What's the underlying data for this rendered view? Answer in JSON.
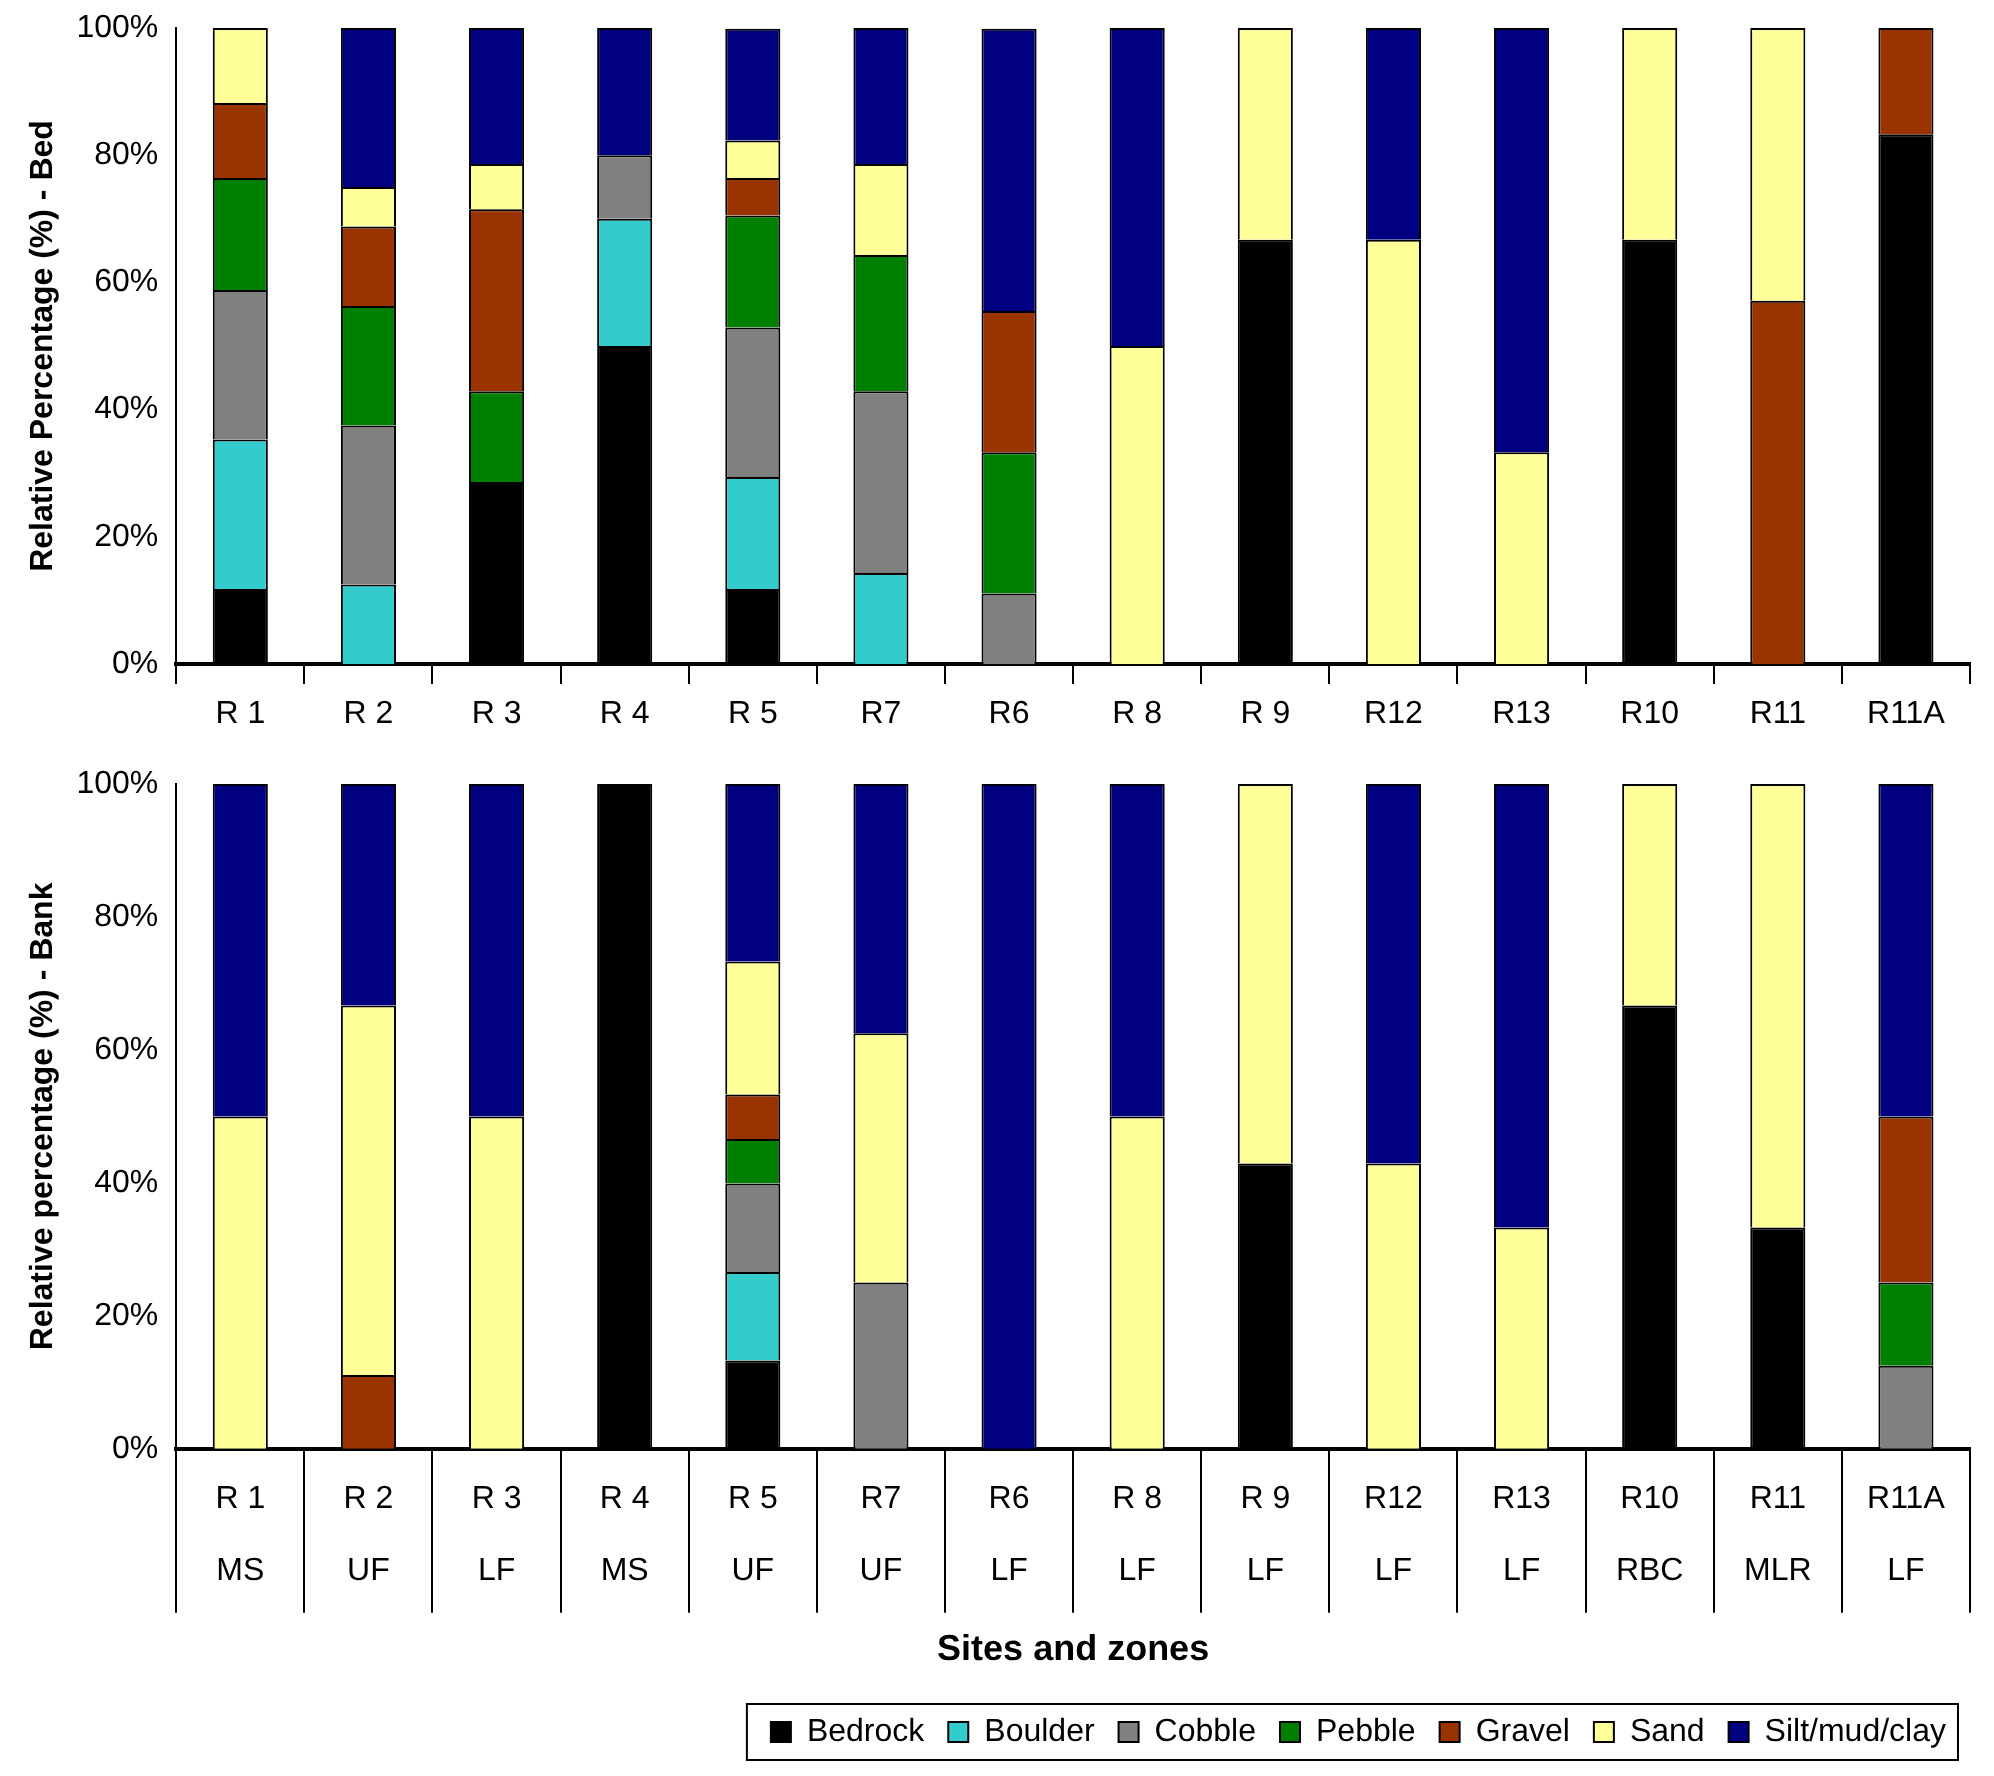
{
  "chart_data": [
    {
      "type": "bar",
      "stacked": true,
      "ylabel": "Relative Percentage (%) - Bed",
      "legend": false,
      "categories": [
        "R 1",
        "R 2",
        "R 3",
        "R 4",
        "R 5",
        "R7",
        "R6",
        "R 8",
        "R 9",
        "R12",
        "R13",
        "R10",
        "R11",
        "R11A"
      ],
      "ylim": [
        0,
        100
      ],
      "yticks": [
        {
          "value": 0,
          "label": "0%"
        },
        {
          "value": 20,
          "label": "20%"
        },
        {
          "value": 40,
          "label": "40%"
        },
        {
          "value": 60,
          "label": "60%"
        },
        {
          "value": 80,
          "label": "80%"
        },
        {
          "value": 100,
          "label": "100%"
        }
      ],
      "series": [
        {
          "color": "#000000",
          "values": [
            11.8,
            null,
            28.6,
            50,
            11.8,
            null,
            null,
            null,
            66.7,
            null,
            null,
            66.7,
            null,
            83.3
          ]
        },
        {
          "color": "#33cccc",
          "values": [
            23.5,
            12.5,
            null,
            20,
            17.6,
            14.3,
            null,
            null,
            null,
            null,
            null,
            null,
            null,
            null
          ]
        },
        {
          "color": "#808080",
          "values": [
            23.5,
            25,
            null,
            10,
            23.5,
            28.6,
            11.1,
            null,
            null,
            null,
            null,
            null,
            null,
            null
          ]
        },
        {
          "color": "#008000",
          "values": [
            17.6,
            18.8,
            14.3,
            null,
            17.6,
            21.4,
            22.2,
            null,
            null,
            null,
            null,
            null,
            null,
            null
          ]
        },
        {
          "color": "#993300",
          "values": [
            11.8,
            12.5,
            28.6,
            null,
            5.9,
            null,
            22.2,
            null,
            null,
            null,
            null,
            null,
            57.1,
            16.7
          ]
        },
        {
          "color": "#ffff99",
          "values": [
            11.8,
            6.2,
            7.1,
            null,
            5.9,
            14.3,
            null,
            50,
            33.3,
            66.7,
            33.3,
            33.3,
            42.9,
            null
          ]
        },
        {
          "color": "#000080",
          "values": [
            null,
            25,
            21.4,
            20,
            17.6,
            21.4,
            44.4,
            50,
            null,
            33.3,
            66.7,
            null,
            null,
            null
          ]
        }
      ]
    },
    {
      "type": "bar",
      "stacked": true,
      "ylabel": "Relative percentage (%) - Bank",
      "xlabel": "Sites and zones",
      "legend": "bottom",
      "categories": [
        "R 1\nMS",
        "R 2\nUF",
        "R 3\nLF",
        "R 4\nMS",
        "R 5\nUF",
        "R7\nUF",
        "R6\nLF",
        "R 8\nLF",
        "R 9\nLF",
        "R12\nLF",
        "R13\nLF",
        "R10\nRBC",
        "R11\nMLR",
        "R11A\nLF"
      ],
      "ylim": [
        0,
        100
      ],
      "yticks": [
        {
          "value": 0,
          "label": "0%"
        },
        {
          "value": 20,
          "label": "20%"
        },
        {
          "value": 40,
          "label": "40%"
        },
        {
          "value": 60,
          "label": "60%"
        },
        {
          "value": 80,
          "label": "80%"
        },
        {
          "value": 100,
          "label": "100%"
        }
      ],
      "series": [
        {
          "name": "Bedrock",
          "color": "#000000",
          "values": [
            null,
            null,
            null,
            100,
            13.3,
            null,
            null,
            null,
            42.9,
            null,
            null,
            66.7,
            33.3,
            null
          ]
        },
        {
          "name": "Boulder",
          "color": "#33cccc",
          "values": [
            null,
            null,
            null,
            null,
            13.3,
            null,
            null,
            null,
            null,
            null,
            null,
            null,
            null,
            null
          ]
        },
        {
          "name": "Cobble",
          "color": "#808080",
          "values": [
            null,
            null,
            null,
            null,
            13.3,
            25,
            null,
            null,
            null,
            null,
            null,
            null,
            null,
            12.5
          ]
        },
        {
          "name": "Pebble",
          "color": "#008000",
          "values": [
            null,
            null,
            null,
            null,
            6.7,
            null,
            null,
            null,
            null,
            null,
            null,
            null,
            null,
            12.5
          ]
        },
        {
          "name": "Gravel",
          "color": "#993300",
          "values": [
            null,
            11.1,
            null,
            null,
            6.7,
            null,
            null,
            null,
            null,
            null,
            null,
            null,
            null,
            25
          ]
        },
        {
          "name": "Sand",
          "color": "#ffff99",
          "values": [
            50,
            55.6,
            50,
            null,
            20,
            37.5,
            null,
            50,
            57.1,
            42.9,
            33.3,
            33.3,
            66.7,
            null
          ]
        },
        {
          "name": "Silt/mud/clay",
          "color": "#000080",
          "values": [
            50,
            33.3,
            50,
            null,
            26.7,
            37.5,
            100,
            50,
            null,
            57.1,
            66.7,
            null,
            null,
            50
          ]
        }
      ]
    }
  ]
}
